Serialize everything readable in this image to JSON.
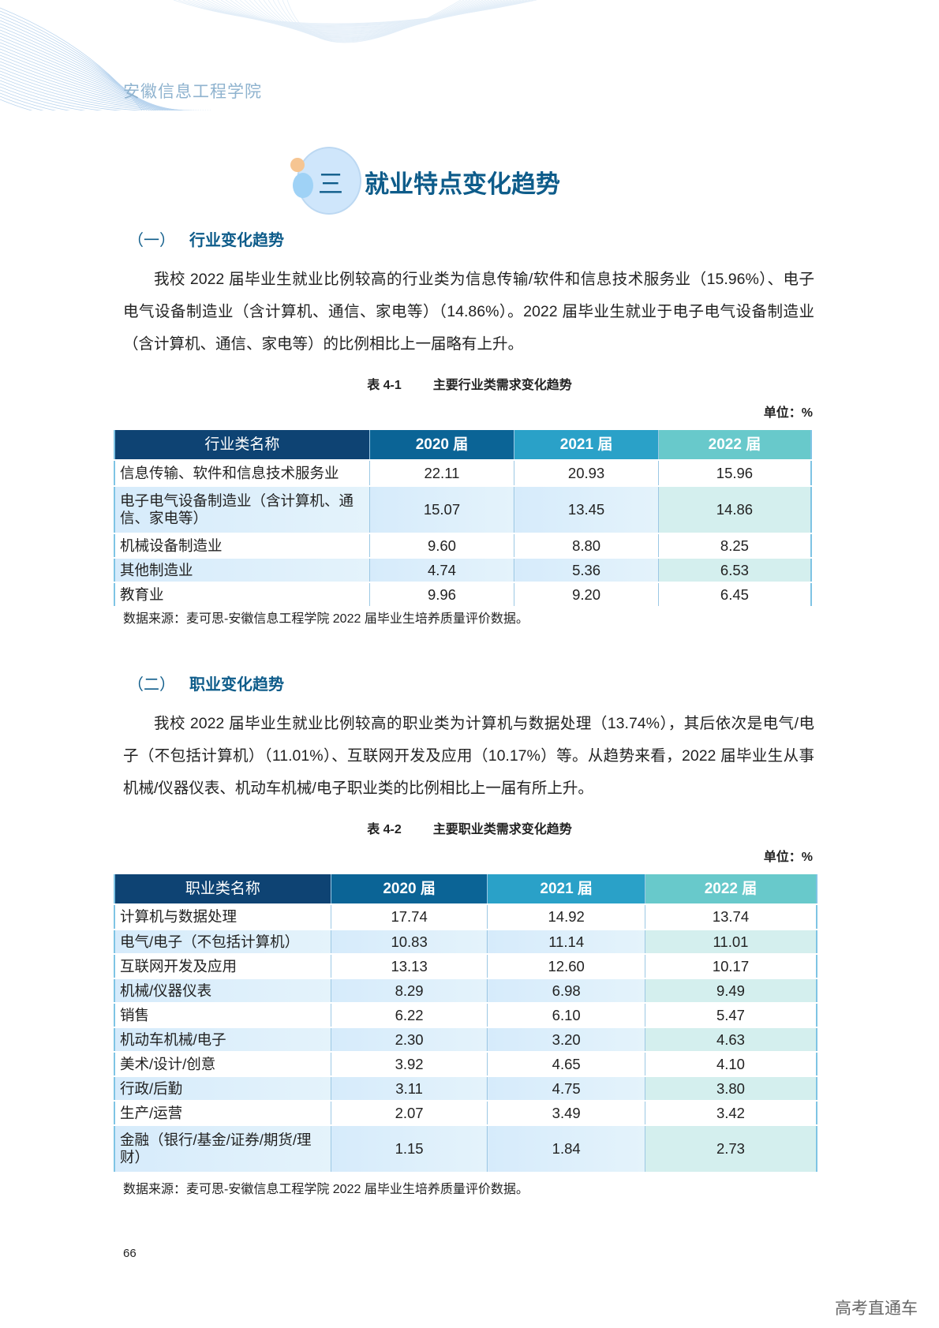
{
  "header": {
    "school": "安徽信息工程学院"
  },
  "chapter": {
    "number": "三",
    "title": "就业特点变化趋势"
  },
  "section1": {
    "number": "（一）",
    "title": "行业变化趋势",
    "paragraph": "我校 2022 届毕业生就业比例较高的行业类为信息传输/软件和信息技术服务业（15.96%）、电子电气设备制造业（含计算机、通信、家电等）（14.86%）。2022 届毕业生就业于电子电气设备制造业（含计算机、通信、家电等）的比例相比上一届略有上升。",
    "table": {
      "caption_no": "表 4-1",
      "caption": "主要行业类需求变化趋势",
      "unit": "单位：%",
      "headers": [
        "行业类名称",
        "2020 届",
        "2021 届",
        "2022 届"
      ],
      "rows": [
        [
          "信息传输、软件和信息技术服务业",
          "22.11",
          "20.93",
          "15.96"
        ],
        [
          "电子电气设备制造业（含计算机、通信、家电等）",
          "15.07",
          "13.45",
          "14.86"
        ],
        [
          "机械设备制造业",
          "9.60",
          "8.80",
          "8.25"
        ],
        [
          "其他制造业",
          "4.74",
          "5.36",
          "6.53"
        ],
        [
          "教育业",
          "9.96",
          "9.20",
          "6.45"
        ]
      ],
      "source": "数据来源：麦可思-安徽信息工程学院 2022 届毕业生培养质量评价数据。"
    }
  },
  "section2": {
    "number": "（二）",
    "title": "职业变化趋势",
    "paragraph": "我校 2022 届毕业生就业比例较高的职业类为计算机与数据处理（13.74%），其后依次是电气/电子（不包括计算机）（11.01%）、互联网开发及应用（10.17%）等。从趋势来看，2022 届毕业生从事机械/仪器仪表、机动车机械/电子职业类的比例相比上一届有所上升。",
    "table": {
      "caption_no": "表 4-2",
      "caption": "主要职业类需求变化趋势",
      "unit": "单位：%",
      "headers": [
        "职业类名称",
        "2020 届",
        "2021 届",
        "2022 届"
      ],
      "rows": [
        [
          "计算机与数据处理",
          "17.74",
          "14.92",
          "13.74"
        ],
        [
          "电气/电子（不包括计算机）",
          "10.83",
          "11.14",
          "11.01"
        ],
        [
          "互联网开发及应用",
          "13.13",
          "12.60",
          "10.17"
        ],
        [
          "机械/仪器仪表",
          "8.29",
          "6.98",
          "9.49"
        ],
        [
          "销售",
          "6.22",
          "6.10",
          "5.47"
        ],
        [
          "机动车机械/电子",
          "2.30",
          "3.20",
          "4.63"
        ],
        [
          "美术/设计/创意",
          "3.92",
          "4.65",
          "4.10"
        ],
        [
          "行政/后勤",
          "3.11",
          "4.75",
          "3.80"
        ],
        [
          "生产/运营",
          "2.07",
          "3.49",
          "3.42"
        ],
        [
          "金融（银行/基金/证券/期货/理财）",
          "1.15",
          "1.84",
          "2.73"
        ]
      ],
      "source": "数据来源：麦可思-安徽信息工程学院 2022 届毕业生培养质量评价数据。"
    }
  },
  "footer": {
    "page": "66",
    "watermark": "高考直通车"
  }
}
